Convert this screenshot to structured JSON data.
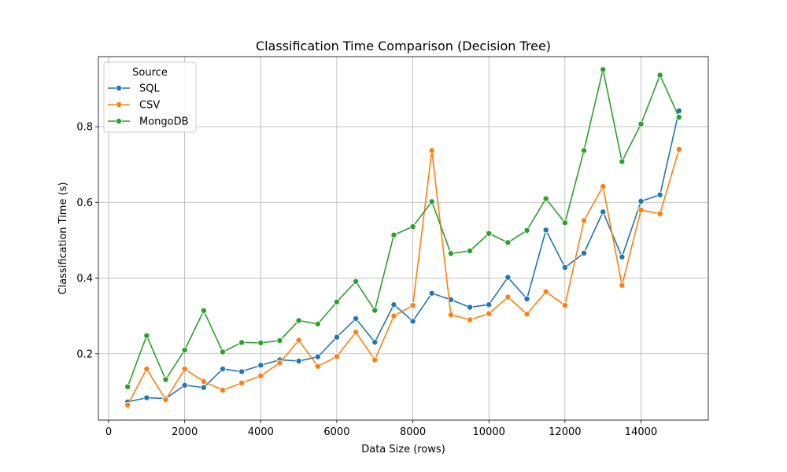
{
  "chart_data": {
    "type": "line",
    "title": "Classification Time Comparison (Decision Tree)",
    "xlabel": "Data Size (rows)",
    "ylabel": "Classification Time (s)",
    "xlim": [
      -270,
      15770
    ],
    "ylim": [
      0.025,
      0.985
    ],
    "xticks": [
      0,
      2000,
      4000,
      6000,
      8000,
      10000,
      12000,
      14000
    ],
    "yticks": [
      0.2,
      0.4,
      0.6,
      0.8
    ],
    "xtick_labels": [
      "0",
      "2000",
      "4000",
      "6000",
      "8000",
      "10000",
      "12000",
      "14000"
    ],
    "ytick_labels": [
      "0.2",
      "0.4",
      "0.6",
      "0.8"
    ],
    "grid": true,
    "legend": {
      "title": "Source",
      "placement": "upper-left"
    },
    "x": [
      500,
      1000,
      1500,
      2000,
      2500,
      3000,
      3500,
      4000,
      4500,
      5000,
      5500,
      6000,
      6500,
      7000,
      7500,
      8000,
      8500,
      9000,
      9500,
      10000,
      10500,
      11000,
      11500,
      12000,
      12500,
      13000,
      13500,
      14000,
      14500,
      15000
    ],
    "series": [
      {
        "name": "SQL",
        "color": "#1f77b4",
        "values": [
          0.073,
          0.084,
          0.082,
          0.117,
          0.111,
          0.16,
          0.153,
          0.17,
          0.184,
          0.181,
          0.192,
          0.244,
          0.293,
          0.231,
          0.33,
          0.286,
          0.36,
          0.343,
          0.323,
          0.33,
          0.402,
          0.345,
          0.527,
          0.428,
          0.466,
          0.575,
          0.456,
          0.603,
          0.62,
          0.842
        ]
      },
      {
        "name": "CSV",
        "color": "#ff7f0e",
        "values": [
          0.065,
          0.16,
          0.079,
          0.16,
          0.127,
          0.104,
          0.123,
          0.142,
          0.176,
          0.236,
          0.167,
          0.193,
          0.257,
          0.184,
          0.3,
          0.328,
          0.737,
          0.303,
          0.29,
          0.306,
          0.35,
          0.305,
          0.364,
          0.328,
          0.552,
          0.642,
          0.381,
          0.58,
          0.57,
          0.74
        ]
      },
      {
        "name": "MongoDB",
        "color": "#2ca02c",
        "values": [
          0.113,
          0.248,
          0.132,
          0.21,
          0.314,
          0.205,
          0.23,
          0.229,
          0.235,
          0.288,
          0.279,
          0.337,
          0.391,
          0.315,
          0.514,
          0.536,
          0.602,
          0.465,
          0.472,
          0.518,
          0.494,
          0.526,
          0.61,
          0.546,
          0.737,
          0.951,
          0.708,
          0.807,
          0.936,
          0.825
        ]
      }
    ]
  }
}
